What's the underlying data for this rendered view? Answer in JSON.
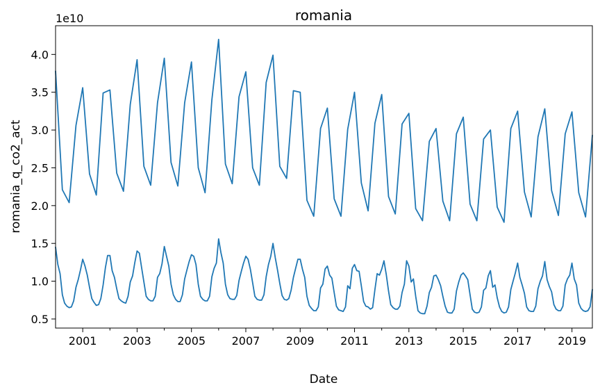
{
  "chart_data": {
    "type": "line",
    "title": "romania",
    "xlabel": "Date",
    "ylabel": "romania_q_co2_act",
    "y_offset_text": "1e10",
    "xlim": [
      2000.0,
      2019.75
    ],
    "ylim": [
      0.38,
      4.38
    ],
    "x_ticks": [
      2001,
      2003,
      2005,
      2007,
      2009,
      2011,
      2013,
      2015,
      2017,
      2019
    ],
    "x_tick_labels": [
      "2001",
      "2003",
      "2005",
      "2007",
      "2009",
      "2011",
      "2013",
      "2015",
      "2017",
      "2019"
    ],
    "x_minor_ticks": [
      2002,
      2004,
      2006,
      2008,
      2010,
      2012,
      2014,
      2016,
      2018
    ],
    "y_ticks": [
      0.5,
      1.0,
      1.5,
      2.0,
      2.5,
      3.0,
      3.5,
      4.0
    ],
    "y_tick_labels": [
      "0.5",
      "1.0",
      "1.5",
      "2.0",
      "2.5",
      "3.0",
      "3.5",
      "4.0"
    ],
    "color": "#1f77b4",
    "grid": false,
    "series": [
      {
        "x": [
          2000.0,
          2000.25,
          2000.5,
          2000.75,
          2001.0,
          2001.25,
          2001.5,
          2001.75,
          2002.0,
          2002.25,
          2002.5,
          2002.75,
          2003.0,
          2003.25,
          2003.5,
          2003.75,
          2004.0,
          2004.25,
          2004.5,
          2004.75,
          2005.0,
          2005.25,
          2005.5,
          2005.75,
          2006.0,
          2006.25,
          2006.5,
          2006.75,
          2007.0,
          2007.25,
          2007.5,
          2007.75,
          2008.0,
          2008.25,
          2008.5,
          2008.75,
          2009.0,
          2009.25,
          2009.5,
          2009.75,
          2010.0,
          2010.25,
          2010.5,
          2010.75,
          2011.0,
          2011.25,
          2011.5,
          2011.75,
          2012.0,
          2012.25,
          2012.5,
          2012.75,
          2013.0,
          2013.25,
          2013.5,
          2013.75,
          2014.0,
          2014.25,
          2014.5,
          2014.75,
          2015.0,
          2015.25,
          2015.5,
          2015.75,
          2016.0,
          2016.25,
          2016.5,
          2016.75,
          2017.0,
          2017.25,
          2017.5,
          2017.75,
          2018.0,
          2018.25,
          2018.5,
          2018.75,
          2019.0,
          2019.25,
          2019.5,
          2019.75
        ],
        "values": [
          3.78,
          2.21,
          2.04,
          3.06,
          3.56,
          2.42,
          2.14,
          3.49,
          3.53,
          2.43,
          2.19,
          3.34,
          3.93,
          2.52,
          2.27,
          3.36,
          3.95,
          2.57,
          2.26,
          3.36,
          3.9,
          2.5,
          2.17,
          3.4,
          4.2,
          2.55,
          2.29,
          3.44,
          3.77,
          2.5,
          2.27,
          3.63,
          3.99,
          2.52,
          2.36,
          3.52,
          3.5,
          2.07,
          1.86,
          3.02,
          3.29,
          2.09,
          1.86,
          3.01,
          3.5,
          2.3,
          1.93,
          3.09,
          3.47,
          2.12,
          1.89,
          3.08,
          3.22,
          1.96,
          1.8,
          2.85,
          3.02,
          2.06,
          1.8,
          2.95,
          3.17,
          2.02,
          1.8,
          2.88,
          3.0,
          1.98,
          1.78,
          3.02,
          3.25,
          2.18,
          1.85,
          2.91,
          3.28,
          2.2,
          1.87,
          2.95,
          3.24,
          2.17,
          1.85,
          2.93
        ]
      },
      {
        "x": [
          2000.0,
          2000.0833,
          2000.1667,
          2000.25,
          2000.3333,
          2000.4167,
          2000.5,
          2000.5833,
          2000.6667,
          2000.75,
          2000.8333,
          2000.9167,
          2001.0,
          2001.0833,
          2001.1667,
          2001.25,
          2001.3333,
          2001.4167,
          2001.5,
          2001.5833,
          2001.6667,
          2001.75,
          2001.8333,
          2001.9167,
          2002.0,
          2002.0833,
          2002.1667,
          2002.25,
          2002.3333,
          2002.4167,
          2002.5,
          2002.5833,
          2002.6667,
          2002.75,
          2002.8333,
          2002.9167,
          2003.0,
          2003.0833,
          2003.1667,
          2003.25,
          2003.3333,
          2003.4167,
          2003.5,
          2003.5833,
          2003.6667,
          2003.75,
          2003.8333,
          2003.9167,
          2004.0,
          2004.0833,
          2004.1667,
          2004.25,
          2004.3333,
          2004.4167,
          2004.5,
          2004.5833,
          2004.6667,
          2004.75,
          2004.8333,
          2004.9167,
          2005.0,
          2005.0833,
          2005.1667,
          2005.25,
          2005.3333,
          2005.4167,
          2005.5,
          2005.5833,
          2005.6667,
          2005.75,
          2005.8333,
          2005.9167,
          2006.0,
          2006.0833,
          2006.1667,
          2006.25,
          2006.3333,
          2006.4167,
          2006.5,
          2006.5833,
          2006.6667,
          2006.75,
          2006.8333,
          2006.9167,
          2007.0,
          2007.0833,
          2007.1667,
          2007.25,
          2007.3333,
          2007.4167,
          2007.5,
          2007.5833,
          2007.6667,
          2007.75,
          2007.8333,
          2007.9167,
          2008.0,
          2008.0833,
          2008.1667,
          2008.25,
          2008.3333,
          2008.4167,
          2008.5,
          2008.5833,
          2008.6667,
          2008.75,
          2008.8333,
          2008.9167,
          2009.0,
          2009.0833,
          2009.1667,
          2009.25,
          2009.3333,
          2009.4167,
          2009.5,
          2009.5833,
          2009.6667,
          2009.75,
          2009.8333,
          2009.9167,
          2010.0,
          2010.0833,
          2010.1667,
          2010.25,
          2010.3333,
          2010.4167,
          2010.5,
          2010.5833,
          2010.6667,
          2010.75,
          2010.8333,
          2010.9167,
          2011.0,
          2011.0833,
          2011.1667,
          2011.25,
          2011.3333,
          2011.4167,
          2011.5,
          2011.5833,
          2011.6667,
          2011.75,
          2011.8333,
          2011.9167,
          2012.0,
          2012.0833,
          2012.1667,
          2012.25,
          2012.3333,
          2012.4167,
          2012.5,
          2012.5833,
          2012.6667,
          2012.75,
          2012.8333,
          2012.9167,
          2013.0,
          2013.0833,
          2013.1667,
          2013.25,
          2013.3333,
          2013.4167,
          2013.5,
          2013.5833,
          2013.6667,
          2013.75,
          2013.8333,
          2013.9167,
          2014.0,
          2014.0833,
          2014.1667,
          2014.25,
          2014.3333,
          2014.4167,
          2014.5,
          2014.5833,
          2014.6667,
          2014.75,
          2014.8333,
          2014.9167,
          2015.0,
          2015.0833,
          2015.1667,
          2015.25,
          2015.3333,
          2015.4167,
          2015.5,
          2015.5833,
          2015.6667,
          2015.75,
          2015.8333,
          2015.9167,
          2016.0,
          2016.0833,
          2016.1667,
          2016.25,
          2016.3333,
          2016.4167,
          2016.5,
          2016.5833,
          2016.6667,
          2016.75,
          2016.8333,
          2016.9167,
          2017.0,
          2017.0833,
          2017.1667,
          2017.25,
          2017.3333,
          2017.4167,
          2017.5,
          2017.5833,
          2017.6667,
          2017.75,
          2017.8333,
          2017.9167,
          2018.0,
          2018.0833,
          2018.1667,
          2018.25,
          2018.3333,
          2018.4167,
          2018.5,
          2018.5833,
          2018.6667,
          2018.75,
          2018.8333,
          2018.9167,
          2019.0,
          2019.0833,
          2019.1667,
          2019.25,
          2019.3333,
          2019.4167,
          2019.5,
          2019.5833,
          2019.6667,
          2019.75
        ],
        "values": [
          1.45,
          1.22,
          1.1,
          0.82,
          0.71,
          0.67,
          0.65,
          0.66,
          0.74,
          0.92,
          1.02,
          1.15,
          1.29,
          1.2,
          1.08,
          0.92,
          0.77,
          0.72,
          0.68,
          0.69,
          0.77,
          0.95,
          1.18,
          1.34,
          1.34,
          1.14,
          1.05,
          0.9,
          0.77,
          0.74,
          0.72,
          0.71,
          0.8,
          0.99,
          1.07,
          1.25,
          1.4,
          1.37,
          1.18,
          0.99,
          0.8,
          0.76,
          0.74,
          0.74,
          0.8,
          1.05,
          1.1,
          1.23,
          1.46,
          1.33,
          1.2,
          0.96,
          0.82,
          0.76,
          0.73,
          0.73,
          0.82,
          1.03,
          1.15,
          1.26,
          1.35,
          1.33,
          1.22,
          0.96,
          0.8,
          0.76,
          0.74,
          0.74,
          0.8,
          1.06,
          1.17,
          1.24,
          1.56,
          1.38,
          1.24,
          0.96,
          0.82,
          0.77,
          0.76,
          0.76,
          0.81,
          1.01,
          1.13,
          1.24,
          1.33,
          1.29,
          1.16,
          0.98,
          0.8,
          0.76,
          0.75,
          0.75,
          0.82,
          1.06,
          1.22,
          1.33,
          1.5,
          1.31,
          1.15,
          0.97,
          0.81,
          0.76,
          0.75,
          0.77,
          0.88,
          1.05,
          1.17,
          1.29,
          1.29,
          1.16,
          1.05,
          0.8,
          0.68,
          0.64,
          0.61,
          0.61,
          0.66,
          0.91,
          0.96,
          1.16,
          1.2,
          1.08,
          1.04,
          0.85,
          0.67,
          0.62,
          0.61,
          0.6,
          0.66,
          0.94,
          0.9,
          1.17,
          1.22,
          1.14,
          1.13,
          0.94,
          0.73,
          0.67,
          0.66,
          0.63,
          0.65,
          0.89,
          1.1,
          1.08,
          1.16,
          1.27,
          1.09,
          0.87,
          0.69,
          0.65,
          0.63,
          0.63,
          0.67,
          0.85,
          0.96,
          1.27,
          1.2,
          0.99,
          1.03,
          0.8,
          0.61,
          0.58,
          0.57,
          0.57,
          0.67,
          0.85,
          0.92,
          1.07,
          1.08,
          1.02,
          0.94,
          0.8,
          0.67,
          0.59,
          0.58,
          0.58,
          0.63,
          0.87,
          0.99,
          1.08,
          1.11,
          1.07,
          1.02,
          0.82,
          0.63,
          0.59,
          0.58,
          0.59,
          0.66,
          0.88,
          0.91,
          1.07,
          1.14,
          0.92,
          0.95,
          0.78,
          0.66,
          0.6,
          0.58,
          0.59,
          0.66,
          0.89,
          1.0,
          1.11,
          1.24,
          1.05,
          0.95,
          0.84,
          0.66,
          0.61,
          0.6,
          0.6,
          0.67,
          0.9,
          1.0,
          1.07,
          1.26,
          1.02,
          0.93,
          0.86,
          0.69,
          0.63,
          0.61,
          0.61,
          0.67,
          0.95,
          1.03,
          1.08,
          1.24,
          1.03,
          0.95,
          0.71,
          0.64,
          0.61,
          0.6,
          0.61,
          0.66,
          0.89
        ]
      }
    ]
  }
}
